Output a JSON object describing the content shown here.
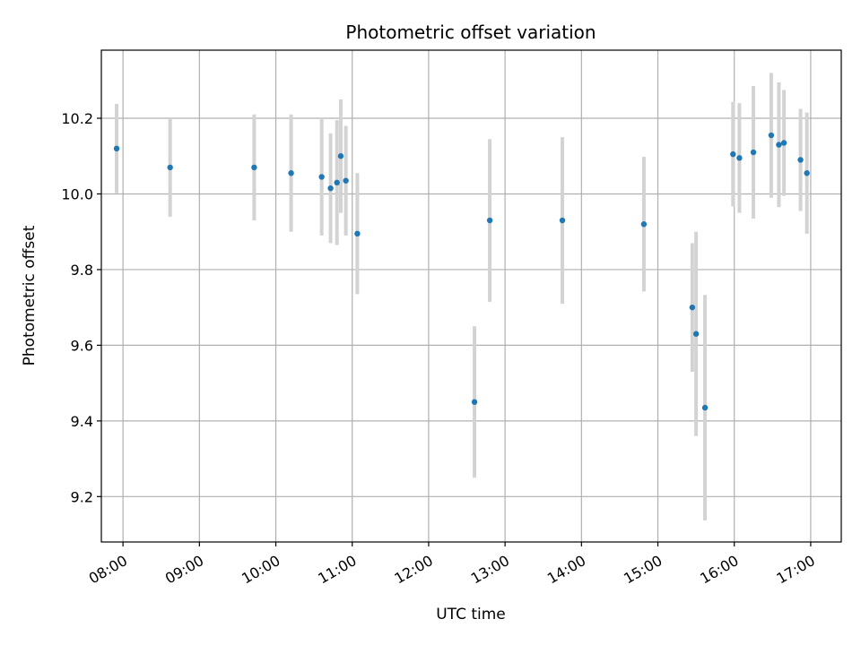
{
  "chart_data": {
    "type": "scatter",
    "title": "Photometric offset variation",
    "xlabel": "UTC time",
    "ylabel": "Photometric offset",
    "x_ticks": [
      "08:00",
      "09:00",
      "10:00",
      "11:00",
      "12:00",
      "13:00",
      "14:00",
      "15:00",
      "16:00",
      "17:00"
    ],
    "y_ticks": [
      "9.2",
      "9.4",
      "9.6",
      "9.8",
      "10.0",
      "10.2"
    ],
    "xlim": [
      "07:43",
      "17:24"
    ],
    "ylim": [
      9.08,
      10.38
    ],
    "grid": true,
    "colors": {
      "point": "#1f77b4",
      "errorbar": "#d3d3d3",
      "grid": "#b0b0b0"
    },
    "series": [
      {
        "points": [
          {
            "x": "07:55",
            "y": 10.12,
            "err": 0.118
          },
          {
            "x": "08:37",
            "y": 10.07,
            "err": 0.13
          },
          {
            "x": "09:43",
            "y": 10.07,
            "err": 0.14
          },
          {
            "x": "10:12",
            "y": 10.055,
            "err": 0.155
          },
          {
            "x": "10:36",
            "y": 10.045,
            "err": 0.155
          },
          {
            "x": "10:43",
            "y": 10.015,
            "err": 0.145
          },
          {
            "x": "10:48",
            "y": 10.03,
            "err": 0.165
          },
          {
            "x": "10:51",
            "y": 10.1,
            "err": 0.15
          },
          {
            "x": "10:55",
            "y": 10.035,
            "err": 0.145
          },
          {
            "x": "11:04",
            "y": 9.895,
            "err": 0.16
          },
          {
            "x": "12:36",
            "y": 9.45,
            "err": 0.2
          },
          {
            "x": "12:48",
            "y": 9.93,
            "err": 0.215
          },
          {
            "x": "13:45",
            "y": 9.93,
            "err": 0.22
          },
          {
            "x": "14:49",
            "y": 9.92,
            "err": 0.178
          },
          {
            "x": "15:27",
            "y": 9.7,
            "err": 0.17
          },
          {
            "x": "15:30",
            "y": 9.63,
            "err": 0.27
          },
          {
            "x": "15:37",
            "y": 9.435,
            "err": 0.298
          },
          {
            "x": "15:59",
            "y": 10.105,
            "err": 0.138
          },
          {
            "x": "16:04",
            "y": 10.095,
            "err": 0.145
          },
          {
            "x": "16:15",
            "y": 10.11,
            "err": 0.175
          },
          {
            "x": "16:29",
            "y": 10.155,
            "err": 0.165
          },
          {
            "x": "16:35",
            "y": 10.13,
            "err": 0.165
          },
          {
            "x": "16:39",
            "y": 10.135,
            "err": 0.14
          },
          {
            "x": "16:52",
            "y": 10.09,
            "err": 0.135
          },
          {
            "x": "16:57",
            "y": 10.055,
            "err": 0.16
          }
        ]
      }
    ]
  }
}
